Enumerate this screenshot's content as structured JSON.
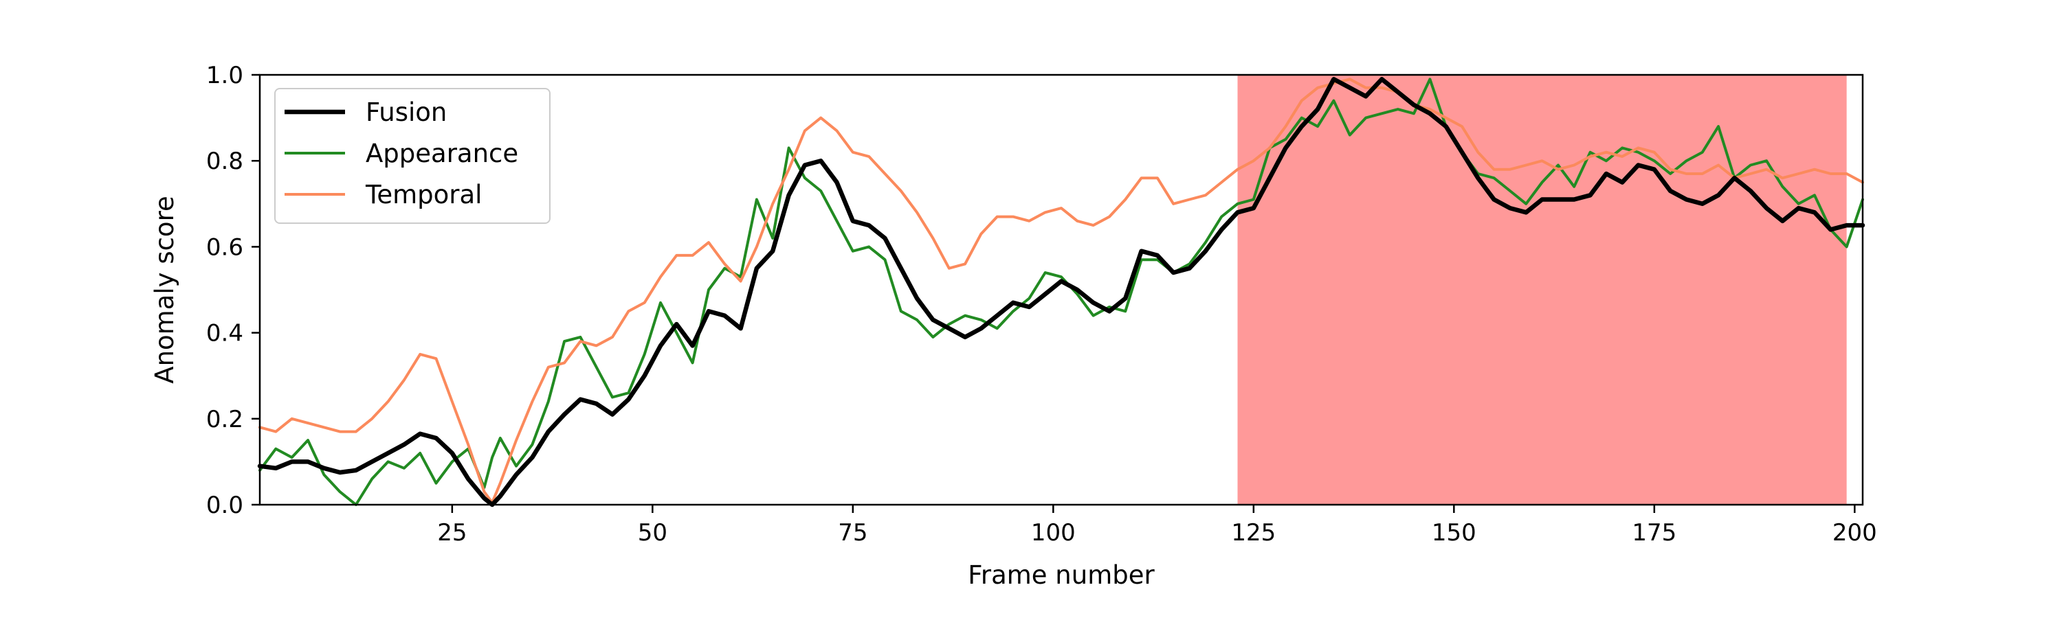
{
  "chart_data": {
    "type": "line",
    "xlabel": "Frame number",
    "ylabel": "Anomaly score",
    "xlim": [
      1,
      201
    ],
    "ylim": [
      0,
      1
    ],
    "x_ticks": [
      25,
      50,
      75,
      100,
      125,
      150,
      175,
      200
    ],
    "y_ticks": [
      0.0,
      0.2,
      0.4,
      0.6,
      0.8,
      1.0
    ],
    "x_tick_labels": [
      "25",
      "50",
      "75",
      "100",
      "125",
      "150",
      "175",
      "200"
    ],
    "y_tick_labels": [
      "0.0",
      "0.2",
      "0.4",
      "0.6",
      "0.8",
      "1.0"
    ],
    "grid": false,
    "legend_position": "top-left",
    "highlight_region": {
      "x_start": 123,
      "x_end": 199,
      "color": "#ff9999"
    },
    "series": [
      {
        "name": "Fusion",
        "color": "#000000",
        "x": [
          1,
          3,
          5,
          7,
          9,
          11,
          13,
          15,
          17,
          19,
          21,
          23,
          25,
          27,
          29,
          30,
          31,
          33,
          35,
          37,
          39,
          41,
          43,
          45,
          47,
          49,
          51,
          53,
          55,
          57,
          59,
          61,
          63,
          65,
          67,
          69,
          71,
          73,
          75,
          77,
          79,
          81,
          83,
          85,
          87,
          89,
          91,
          93,
          95,
          97,
          99,
          101,
          103,
          105,
          107,
          109,
          111,
          113,
          115,
          117,
          119,
          121,
          123,
          125,
          127,
          129,
          131,
          133,
          135,
          137,
          139,
          141,
          143,
          145,
          147,
          149,
          151,
          153,
          155,
          157,
          159,
          161,
          163,
          165,
          167,
          169,
          171,
          173,
          175,
          177,
          179,
          181,
          183,
          185,
          187,
          189,
          191,
          193,
          195,
          197,
          199,
          201
        ],
        "values": [
          0.09,
          0.085,
          0.1,
          0.1,
          0.085,
          0.075,
          0.08,
          0.1,
          0.12,
          0.14,
          0.165,
          0.155,
          0.12,
          0.06,
          0.015,
          0.0,
          0.02,
          0.07,
          0.11,
          0.17,
          0.21,
          0.245,
          0.235,
          0.21,
          0.245,
          0.3,
          0.37,
          0.42,
          0.37,
          0.45,
          0.44,
          0.41,
          0.55,
          0.59,
          0.72,
          0.79,
          0.8,
          0.75,
          0.66,
          0.65,
          0.62,
          0.55,
          0.48,
          0.43,
          0.41,
          0.39,
          0.41,
          0.44,
          0.47,
          0.46,
          0.49,
          0.52,
          0.5,
          0.47,
          0.45,
          0.48,
          0.59,
          0.58,
          0.54,
          0.55,
          0.59,
          0.64,
          0.68,
          0.69,
          0.76,
          0.83,
          0.88,
          0.92,
          0.99,
          0.97,
          0.95,
          0.99,
          0.96,
          0.93,
          0.91,
          0.88,
          0.82,
          0.76,
          0.71,
          0.69,
          0.68,
          0.71,
          0.71,
          0.71,
          0.72,
          0.77,
          0.75,
          0.79,
          0.78,
          0.73,
          0.71,
          0.7,
          0.72,
          0.76,
          0.73,
          0.69,
          0.66,
          0.69,
          0.68,
          0.64,
          0.65,
          0.65
        ]
      },
      {
        "name": "Appearance",
        "color": "#228b22",
        "x": [
          1,
          3,
          5,
          7,
          9,
          11,
          13,
          15,
          17,
          19,
          21,
          23,
          25,
          27,
          29,
          30,
          31,
          33,
          35,
          37,
          39,
          41,
          43,
          45,
          47,
          49,
          51,
          53,
          55,
          57,
          59,
          61,
          63,
          65,
          67,
          69,
          71,
          73,
          75,
          77,
          79,
          81,
          83,
          85,
          87,
          89,
          91,
          93,
          95,
          97,
          99,
          101,
          103,
          105,
          107,
          109,
          111,
          113,
          115,
          117,
          119,
          121,
          123,
          125,
          127,
          129,
          131,
          133,
          135,
          137,
          139,
          141,
          143,
          145,
          147,
          149,
          151,
          153,
          155,
          157,
          159,
          161,
          163,
          165,
          167,
          169,
          171,
          173,
          175,
          177,
          179,
          181,
          183,
          185,
          187,
          189,
          191,
          193,
          195,
          197,
          199,
          201
        ],
        "values": [
          0.08,
          0.13,
          0.11,
          0.15,
          0.07,
          0.03,
          0.0,
          0.06,
          0.1,
          0.085,
          0.12,
          0.05,
          0.1,
          0.13,
          0.04,
          0.11,
          0.155,
          0.09,
          0.14,
          0.24,
          0.38,
          0.39,
          0.32,
          0.25,
          0.26,
          0.35,
          0.47,
          0.4,
          0.33,
          0.5,
          0.55,
          0.53,
          0.71,
          0.62,
          0.83,
          0.76,
          0.73,
          0.66,
          0.59,
          0.6,
          0.57,
          0.45,
          0.43,
          0.39,
          0.42,
          0.44,
          0.43,
          0.41,
          0.45,
          0.48,
          0.54,
          0.53,
          0.49,
          0.44,
          0.46,
          0.45,
          0.57,
          0.57,
          0.54,
          0.56,
          0.61,
          0.67,
          0.7,
          0.71,
          0.83,
          0.85,
          0.9,
          0.88,
          0.94,
          0.86,
          0.9,
          0.91,
          0.92,
          0.91,
          0.99,
          0.88,
          0.82,
          0.77,
          0.76,
          0.73,
          0.7,
          0.75,
          0.79,
          0.74,
          0.82,
          0.8,
          0.83,
          0.82,
          0.8,
          0.77,
          0.8,
          0.82,
          0.88,
          0.76,
          0.79,
          0.8,
          0.74,
          0.7,
          0.72,
          0.64,
          0.6,
          0.71
        ]
      },
      {
        "name": "Temporal",
        "color": "#fb8a5c",
        "x": [
          1,
          3,
          5,
          7,
          9,
          11,
          13,
          15,
          17,
          19,
          21,
          23,
          25,
          27,
          29,
          30,
          31,
          33,
          35,
          37,
          39,
          41,
          43,
          45,
          47,
          49,
          51,
          53,
          55,
          57,
          59,
          61,
          63,
          65,
          67,
          69,
          71,
          73,
          75,
          77,
          79,
          81,
          83,
          85,
          87,
          89,
          91,
          93,
          95,
          97,
          99,
          101,
          103,
          105,
          107,
          109,
          111,
          113,
          115,
          117,
          119,
          121,
          123,
          125,
          127,
          129,
          131,
          133,
          135,
          137,
          139,
          141,
          143,
          145,
          147,
          149,
          151,
          153,
          155,
          157,
          159,
          161,
          163,
          165,
          167,
          169,
          171,
          173,
          175,
          177,
          179,
          181,
          183,
          185,
          187,
          189,
          191,
          193,
          195,
          197,
          199,
          201
        ],
        "values": [
          0.18,
          0.17,
          0.2,
          0.19,
          0.18,
          0.17,
          0.17,
          0.2,
          0.24,
          0.29,
          0.35,
          0.34,
          0.24,
          0.14,
          0.03,
          0.005,
          0.05,
          0.15,
          0.24,
          0.32,
          0.33,
          0.38,
          0.37,
          0.39,
          0.45,
          0.47,
          0.53,
          0.58,
          0.58,
          0.61,
          0.56,
          0.52,
          0.6,
          0.7,
          0.78,
          0.87,
          0.9,
          0.87,
          0.82,
          0.81,
          0.77,
          0.73,
          0.68,
          0.62,
          0.55,
          0.56,
          0.63,
          0.67,
          0.67,
          0.66,
          0.68,
          0.69,
          0.66,
          0.65,
          0.67,
          0.71,
          0.76,
          0.76,
          0.7,
          0.71,
          0.72,
          0.75,
          0.78,
          0.8,
          0.83,
          0.88,
          0.94,
          0.97,
          0.98,
          0.99,
          0.97,
          0.97,
          0.96,
          0.93,
          0.92,
          0.9,
          0.88,
          0.82,
          0.78,
          0.78,
          0.79,
          0.8,
          0.78,
          0.79,
          0.81,
          0.82,
          0.81,
          0.83,
          0.82,
          0.78,
          0.77,
          0.77,
          0.79,
          0.76,
          0.77,
          0.78,
          0.76,
          0.77,
          0.78,
          0.77,
          0.77,
          0.75
        ]
      }
    ]
  }
}
